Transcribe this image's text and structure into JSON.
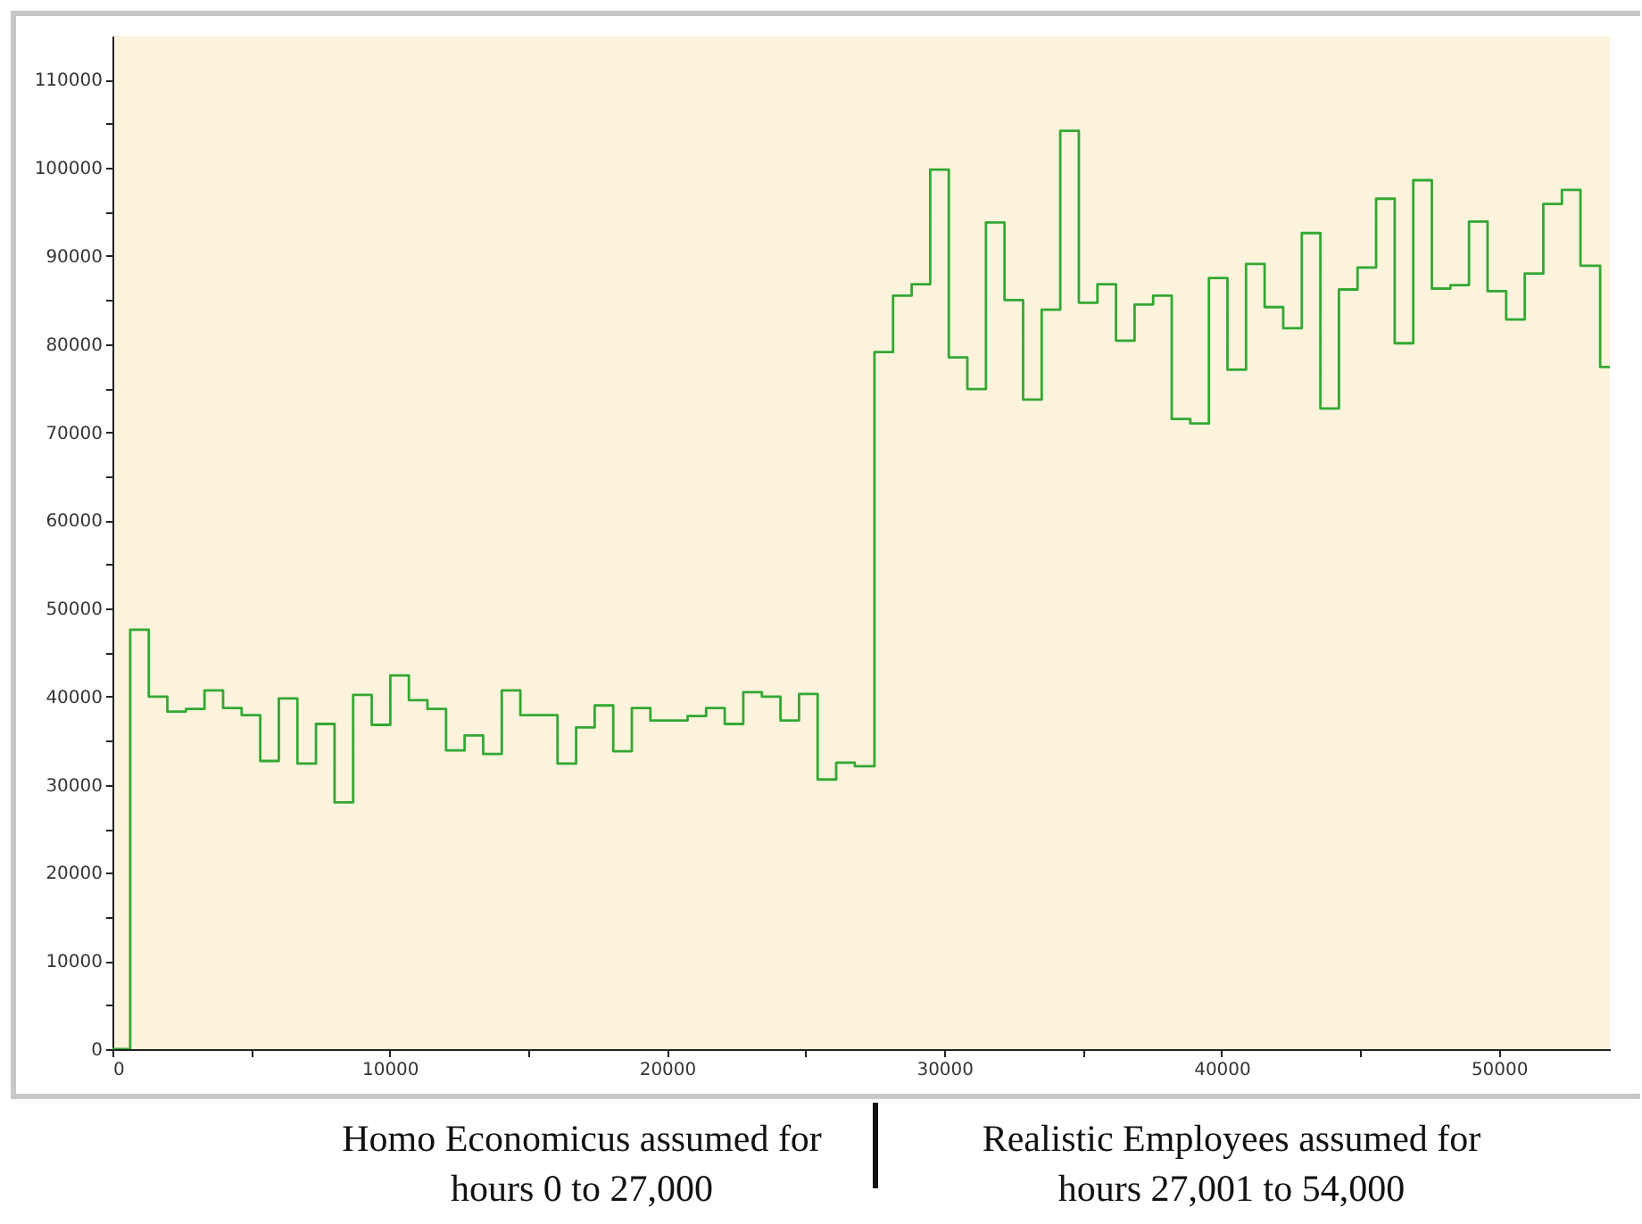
{
  "chart_data": {
    "type": "step",
    "x": [
      0,
      640,
      1310,
      1980,
      2650,
      3320,
      3990,
      4660,
      5330,
      6000,
      6670,
      7340,
      8010,
      8680,
      9350,
      10020,
      10690,
      11360,
      12030,
      12700,
      13370,
      14040,
      14710,
      15380,
      16050,
      16720,
      17390,
      18060,
      18730,
      19400,
      20070,
      20740,
      21410,
      22080,
      22750,
      23420,
      24090,
      24760,
      25430,
      26100,
      26770,
      27480,
      28150,
      28820,
      29490,
      30160,
      30830,
      31500,
      32170,
      32840,
      33510,
      34180,
      34850,
      35520,
      36190,
      36860,
      37530,
      38200,
      38870,
      39540,
      40210,
      40880,
      41550,
      42220,
      42890,
      43560,
      44230,
      44900,
      45570,
      46240,
      46910,
      47580,
      48250,
      48920,
      49590,
      50260,
      50930,
      51600,
      52270,
      52940,
      53650,
      54000
    ],
    "series": [
      {
        "color": "#33a833",
        "values": [
          0,
          47600,
          40000,
          38300,
          38600,
          40700,
          38700,
          37900,
          32700,
          39800,
          32400,
          36900,
          28000,
          40200,
          36800,
          42400,
          39600,
          38600,
          33900,
          35600,
          33500,
          40700,
          37900,
          37900,
          32400,
          36500,
          39000,
          33800,
          38700,
          37300,
          37300,
          37800,
          38700,
          36900,
          40500,
          40000,
          37300,
          40300,
          30600,
          32500,
          32100,
          79100,
          85500,
          86800,
          99800,
          78500,
          74900,
          93800,
          85000,
          73700,
          83900,
          104200,
          84700,
          86800,
          80400,
          84500,
          85500,
          71500,
          71000,
          87500,
          77100,
          89100,
          84200,
          81800,
          92600,
          72700,
          86200,
          88700,
          96500,
          80100,
          98600,
          86300,
          86700,
          93900,
          86000,
          82800,
          88000,
          95900,
          97500,
          88900,
          77400,
          77400
        ]
      }
    ],
    "xlim": [
      0,
      54000
    ],
    "ylim": [
      0,
      115000
    ],
    "xticks": [
      0,
      {
        "value": 5000,
        "label": null
      },
      10000,
      {
        "value": 15000,
        "label": null
      },
      20000,
      {
        "value": 25000,
        "label": null
      },
      30000,
      {
        "value": 35000,
        "label": null
      },
      40000,
      {
        "value": 45000,
        "label": null
      },
      50000
    ],
    "yticks": [
      0,
      {
        "value": 5000,
        "label": null
      },
      10000,
      {
        "value": 15000,
        "label": null
      },
      20000,
      {
        "value": 25000,
        "label": null
      },
      30000,
      {
        "value": 35000,
        "label": null
      },
      40000,
      {
        "value": 45000,
        "label": null
      },
      50000,
      {
        "value": 55000,
        "label": null
      },
      60000,
      {
        "value": 65000,
        "label": null
      },
      70000,
      {
        "value": 75000,
        "label": null
      },
      80000,
      {
        "value": 85000,
        "label": null
      },
      90000,
      {
        "value": 95000,
        "label": null
      },
      100000,
      {
        "value": 105000,
        "label": null
      },
      110000
    ],
    "annotations": [
      "Homo Economicus assumed for hours 0 to 27,000",
      "Realistic Employees assumed for hours 27,001 to 54,000"
    ]
  }
}
